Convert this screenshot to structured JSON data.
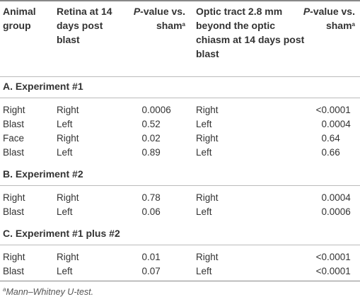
{
  "header": {
    "columns": [
      {
        "text": "Animal group"
      },
      {
        "text": "Retina at 14 days post blast"
      },
      {
        "italic": "P",
        "text": "-value vs. sham",
        "sup": "a"
      },
      {
        "text": "Optic tract 2.8 mm beyond the optic chiasm at 14 days post blast"
      },
      {
        "italic": "P",
        "text": "-value vs. sham",
        "sup": "a"
      }
    ]
  },
  "sections": [
    {
      "title": "A. Experiment #1",
      "rows": [
        [
          "Right",
          "Right",
          "0.0006",
          "Right",
          "<0.0001"
        ],
        [
          "Blast",
          "Left",
          "0.52",
          "Left",
          "0.0004"
        ],
        [
          "Face",
          "Right",
          "0.02",
          "Right",
          "0.64"
        ],
        [
          "Blast",
          "Left",
          "0.89",
          "Left",
          "0.66"
        ]
      ]
    },
    {
      "title": "B. Experiment #2",
      "rows": [
        [
          "Right",
          "Right",
          "0.78",
          "Right",
          "0.0004"
        ],
        [
          "Blast",
          "Left",
          "0.06",
          "Left",
          "0.0006"
        ]
      ]
    },
    {
      "title": "C. Experiment #1 plus #2",
      "rows": [
        [
          "Right",
          "Right",
          "0.01",
          "Right",
          "<0.0001"
        ],
        [
          "Blast",
          "Left",
          "0.07",
          "Left",
          "<0.0001"
        ]
      ]
    }
  ],
  "footnote": {
    "mark": "a",
    "text": "Mann–Whitney U-test."
  }
}
